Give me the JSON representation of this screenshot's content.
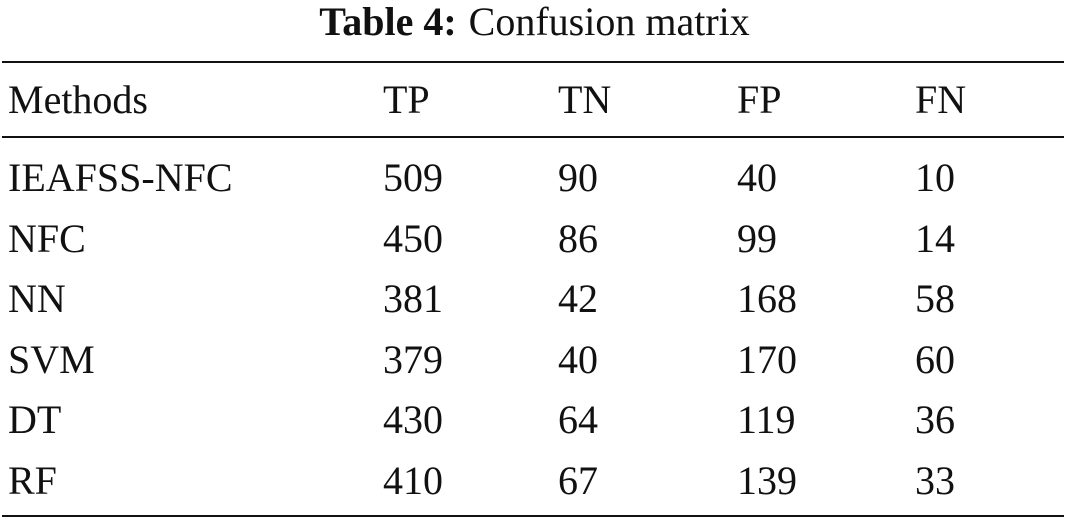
{
  "table": {
    "caption_label": "Table 4:",
    "caption_text": "Confusion matrix",
    "header": [
      "Methods",
      "TP",
      "TN",
      "FP",
      "FN"
    ],
    "rows": [
      [
        "IEAFSS-NFC",
        509,
        90,
        40,
        10
      ],
      [
        "NFC",
        450,
        86,
        99,
        14
      ],
      [
        "NN",
        381,
        42,
        168,
        58
      ],
      [
        "SVM",
        379,
        40,
        170,
        60
      ],
      [
        "DT",
        430,
        64,
        119,
        36
      ],
      [
        "RF",
        410,
        67,
        139,
        33
      ]
    ]
  }
}
